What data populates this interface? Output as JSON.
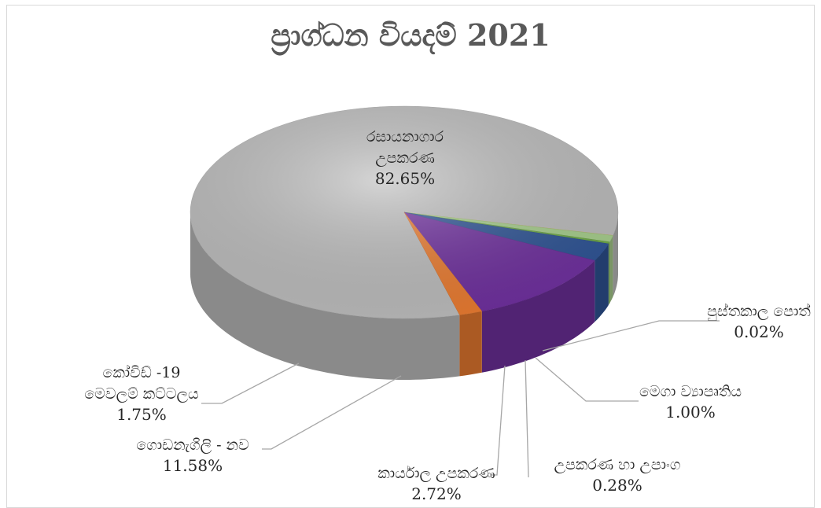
{
  "chart_data": {
    "type": "pie",
    "title": "ප්‍රාග්ධන වියදම් 2021",
    "slices": [
      {
        "label_lines": [
          "රසායනාගාර",
          "උපකරණ"
        ],
        "value_label": "82.65%",
        "value": 82.65,
        "color": "#bfbfbf"
      },
      {
        "label_lines": [
          "පුස්තකාල පොත්"
        ],
        "value_label": "0.02%",
        "value": 0.02,
        "color": "#ffd966"
      },
      {
        "label_lines": [
          "මෙගා ව්‍යාපෘතිය"
        ],
        "value_label": "1.00%",
        "value": 1.0,
        "color": "#a9d18e"
      },
      {
        "label_lines": [
          "උපකරණ හා උපාංග"
        ],
        "value_label": "0.28%",
        "value": 0.28,
        "color": "#70ad47"
      },
      {
        "label_lines": [
          "කාර්යාල උපකරණ"
        ],
        "value_label": "2.72%",
        "value": 2.72,
        "color": "#2f5597"
      },
      {
        "label_lines": [
          "ගොඩනැගිලි - නව"
        ],
        "value_label": "11.58%",
        "value": 11.58,
        "color": "#7030a0"
      },
      {
        "label_lines": [
          "කෝවිඩ් -19",
          "මෙවලම් කට්ටලය"
        ],
        "value_label": "1.75%",
        "value": 1.75,
        "color": "#ed7d31"
      }
    ],
    "legend": "none"
  }
}
